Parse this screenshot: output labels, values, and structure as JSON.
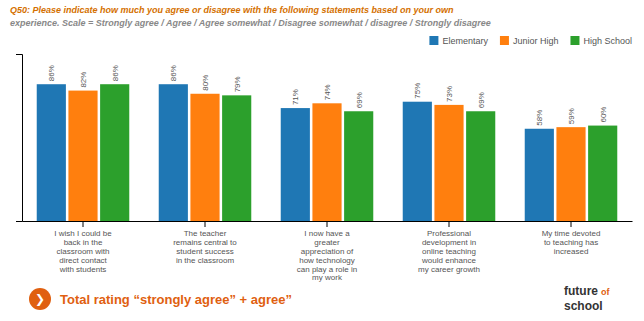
{
  "chart_data": {
    "type": "bar",
    "title": "Q50: Please indicate how much you agree or disagree with the following statements based on your own",
    "subtitle": "experience.  Scale = Strongly agree / Agree / Agree somewhat / Disagree somewhat / disagree / Strongly disagree",
    "categories": [
      "I wish I could be\nback in the\nclassroom with\ndirect contact\nwith students",
      "The teacher\nremains central to\nstudent success\nin the classroom",
      "I now have a\ngreater\nappreciation of\nhow technology\ncan play a role in\nmy work",
      "Professional\ndevelopment in\nonline teaching\nwould enhance\nmy career growth",
      "My time devoted\nto teaching has\nincreased"
    ],
    "series": [
      {
        "name": "Elementary",
        "values": [
          86,
          86,
          71,
          75,
          58
        ],
        "value_labels": [
          "86%",
          "86%",
          "71%",
          "75%",
          "58%"
        ]
      },
      {
        "name": "Junior High",
        "values": [
          82,
          80,
          74,
          73,
          59
        ],
        "value_labels": [
          "82%",
          "80%",
          "74%",
          "73%",
          "59%"
        ]
      },
      {
        "name": "High School",
        "values": [
          86,
          79,
          69,
          69,
          60
        ],
        "value_labels": [
          "86%",
          "79%",
          "69%",
          "69%",
          "60%"
        ]
      }
    ],
    "ylim": [
      0,
      105
    ],
    "yticks": [],
    "grid": false,
    "data_labels": true,
    "tick_labels": "x",
    "legend": "upper right",
    "annotations": [
      "❯",
      "Total rating “strongly agree” + agree”",
      "future",
      "of",
      "school"
    ]
  }
}
